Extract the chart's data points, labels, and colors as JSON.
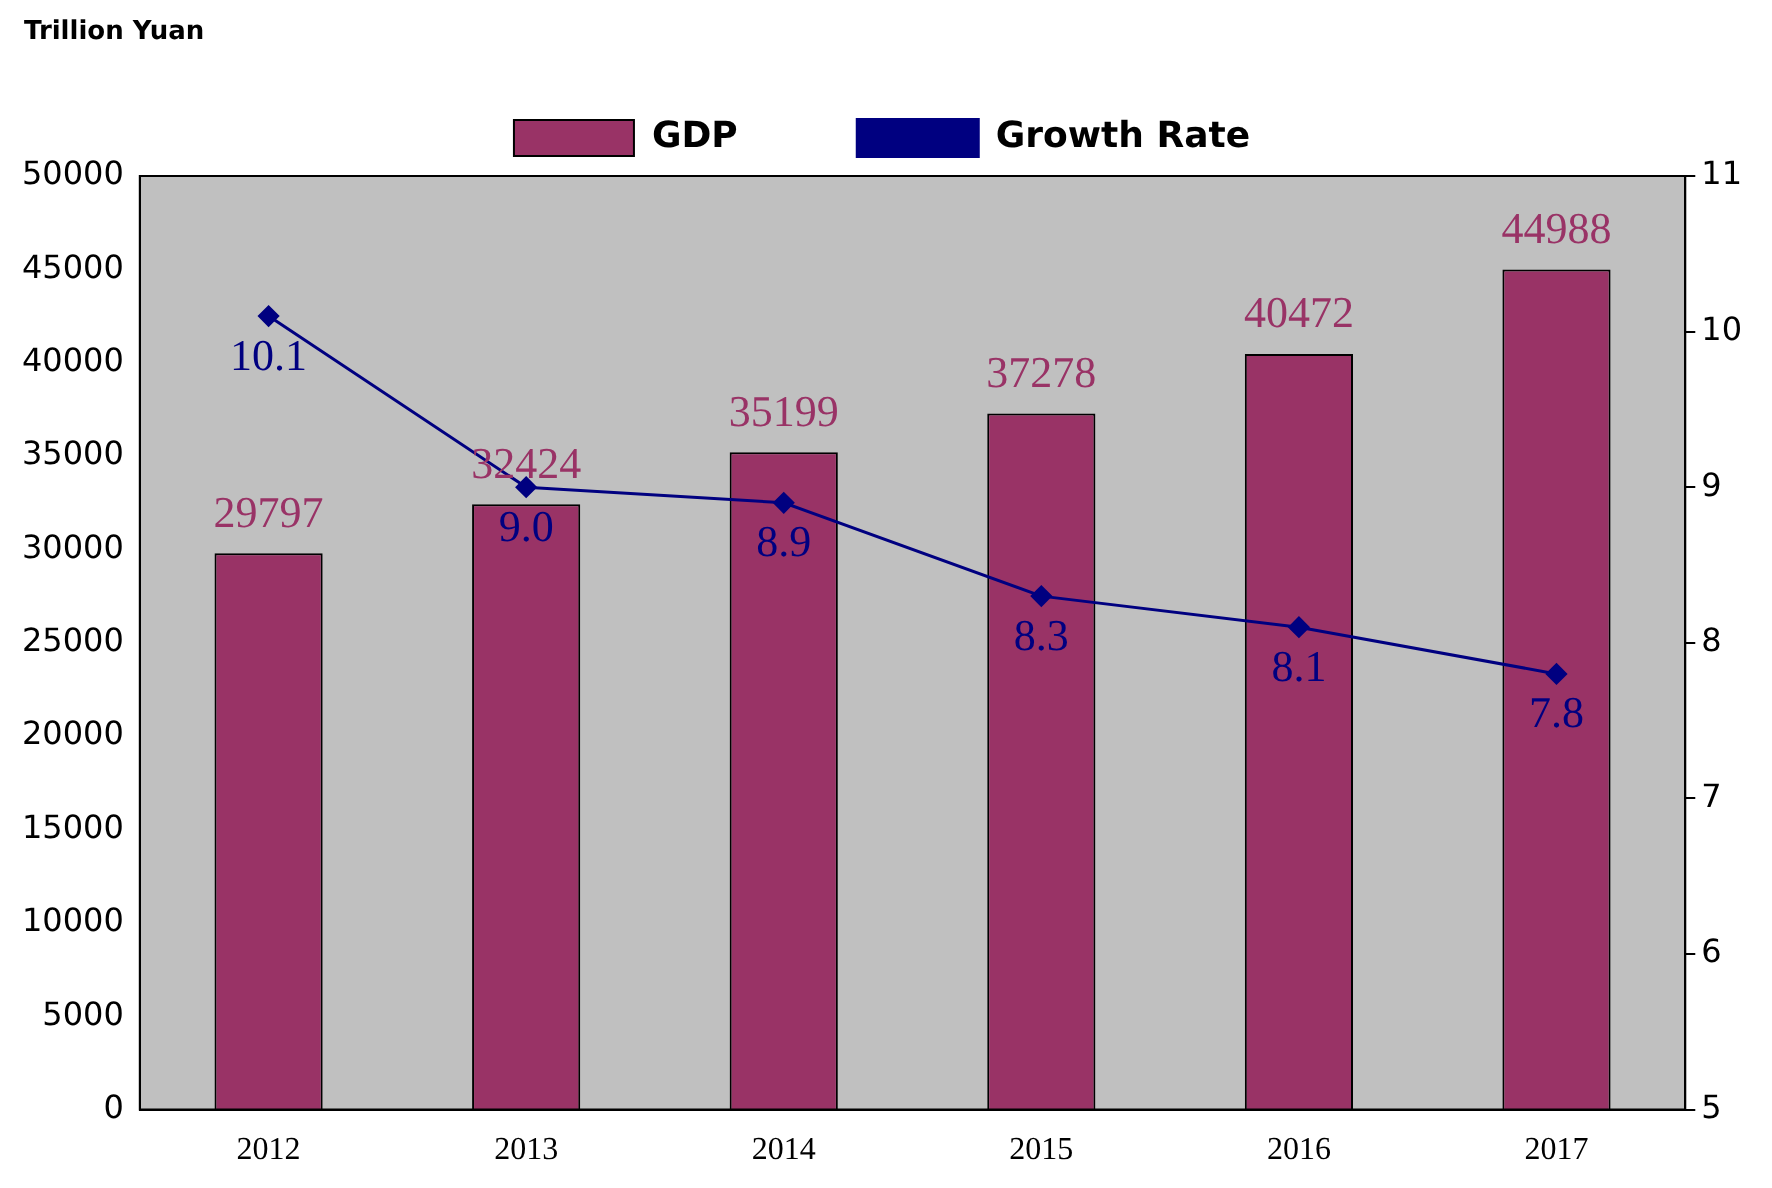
{
  "chart_data": {
    "type": "bar",
    "ylabel": "Trillion Yuan",
    "categories": [
      "2012",
      "2013",
      "2014",
      "2015",
      "2016",
      "2017"
    ],
    "series": [
      {
        "name": "GDP",
        "color": "#993366",
        "values": [
          29797,
          32424,
          35199,
          37278,
          40472,
          44988
        ]
      },
      {
        "name": "Growth Rate",
        "type": "line",
        "axis": "y2",
        "color": "#000080",
        "marker": "diamond",
        "values": [
          10.1,
          9.0,
          8.9,
          8.3,
          8.1,
          7.8
        ],
        "value_labels": [
          "10.1",
          "9.0",
          "8.9",
          "8.3",
          "8.1",
          "7.8"
        ]
      }
    ],
    "ylim": [
      0,
      50000
    ],
    "yticks": [
      0,
      5000,
      10000,
      15000,
      20000,
      25000,
      30000,
      35000,
      40000,
      45000,
      50000
    ],
    "y2lim": [
      5,
      11
    ],
    "y2ticks": [
      5,
      6,
      7,
      8,
      9,
      10,
      11
    ],
    "data_labels": true,
    "grid": false,
    "legend": "top"
  }
}
